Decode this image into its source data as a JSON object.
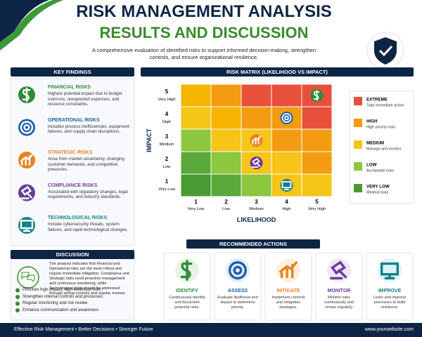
{
  "header": {
    "title": "RISK MANAGEMENT ANALYSIS",
    "subtitle": "RESULTS AND DISCUSSION",
    "description": "A comprehensive evaluation of identified risks to support informed decision-making, strengthen controls, and ensure organizational resilience."
  },
  "key_findings": {
    "title": "KEY FINDINGS",
    "items": [
      {
        "title": "FINANCIAL RISKS",
        "text": "Highest potential impact due to budget overruns, unexpected expenses, and resource constraints.",
        "color": "#2e8b3a"
      },
      {
        "title": "OPERATIONAL RISKS",
        "text": "Includes process inefficiencies, equipment failures, and supply chain disruptions.",
        "color": "#1f5fa8"
      },
      {
        "title": "STRATEGIC RISKS",
        "text": "Arise from market uncertainty, changing customer demands, and competitive pressures.",
        "color": "#e8821e"
      },
      {
        "title": "COMPLIANCE RISKS",
        "text": "Associated with regulatory changes, legal requirements, and industry standards.",
        "color": "#6a3d9a"
      },
      {
        "title": "TECHNOLOGICAL RISKS",
        "text": "Include cybersecurity threats, system failures, and rapid technological changes.",
        "color": "#14808a"
      }
    ]
  },
  "discussion": {
    "title": "DISCUSSION",
    "text": "The analysis indicates that Financial and Operational risks are the most critical and require immediate mitigation. Compliance and Strategic risks need proactive management and continuous monitoring, while Technological risks should be addressed through strong controls and regular reviews.",
    "bullets": [
      "Prioritize high-impact, high-likelihood risks",
      "Strengthen internal controls and processes",
      "Regular monitoring and risk review",
      "Enhance communication and awareness"
    ]
  },
  "risk_matrix": {
    "title": "RISK MATRIX (LIKELIHOOD VS IMPACT)",
    "y_label": "IMPACT",
    "x_label": "LIKELIHOOD",
    "rows": [
      {
        "number": 5,
        "label": "Very High"
      },
      {
        "number": 4,
        "label": "High"
      },
      {
        "number": 3,
        "label": "Medium"
      },
      {
        "number": 2,
        "label": "Low"
      },
      {
        "number": 1,
        "label": "Very Low"
      }
    ],
    "columns": [
      {
        "number": 1,
        "label": "Very Low"
      },
      {
        "number": 2,
        "label": "Low"
      },
      {
        "number": 3,
        "label": "Medium"
      },
      {
        "number": 4,
        "label": "High"
      },
      {
        "number": 5,
        "label": "Very High"
      }
    ],
    "cell_colors": [
      [
        "#f5b400",
        "#f39c12",
        "#e8503c",
        "#e8503c",
        "#e8503c"
      ],
      [
        "#f5c518",
        "#f5b400",
        "#f39c12",
        "#f39c12",
        "#e8503c"
      ],
      [
        "#8dc63f",
        "#f5c518",
        "#f5c518",
        "#f39c12",
        "#f39c12"
      ],
      [
        "#5aa83a",
        "#8dc63f",
        "#f5c518",
        "#f5c518",
        "#f39c12"
      ],
      [
        "#4a9a34",
        "#5aa83a",
        "#8dc63f",
        "#f5c518",
        "#f5c518"
      ]
    ],
    "legend": [
      {
        "name": "EXTREME",
        "description": "Take immediate action",
        "color": "#e8503c"
      },
      {
        "name": "HIGH",
        "description": "High priority risks",
        "color": "#f39c12"
      },
      {
        "name": "MEDIUM",
        "description": "Manage and monitor",
        "color": "#f5c518"
      },
      {
        "name": "LOW",
        "description": "Acceptable risks",
        "color": "#8dc63f"
      },
      {
        "name": "VERY LOW",
        "description": "Minimal risks",
        "color": "#4a9a34"
      }
    ]
  },
  "actions": {
    "title": "RECOMMENDED ACTIONS",
    "items": [
      {
        "title": "IDENTIFY",
        "text": "Continuously identify and document potential risks.",
        "color": "#2e8b3a"
      },
      {
        "title": "ASSESS",
        "text": "Evaluate likelihood and impact to determine priority.",
        "color": "#1f5fa8"
      },
      {
        "title": "MITIGATE",
        "text": "Implement controls and mitigation strategies.",
        "color": "#e8821e"
      },
      {
        "title": "MONITOR",
        "text": "Monitor risks continuously and review regularly.",
        "color": "#6a3d9a"
      },
      {
        "title": "IMPROVE",
        "text": "Learn and improve processes to build resilience.",
        "color": "#14808a"
      }
    ]
  },
  "footer": {
    "tagline": "Effective Risk Management • Better Decisions • Stronger Future",
    "website": "www.yourwebsite.com"
  }
}
